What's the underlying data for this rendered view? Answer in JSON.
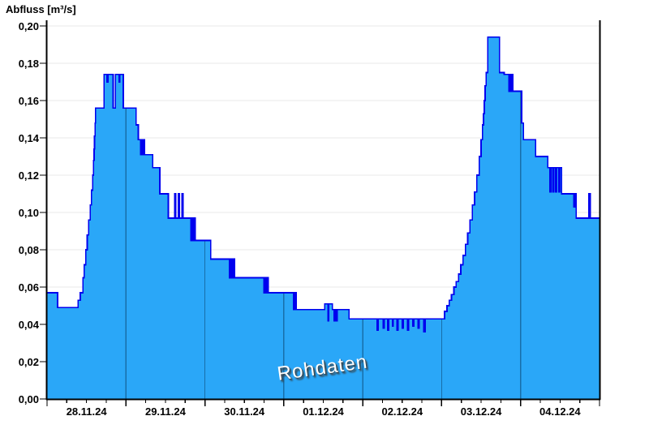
{
  "header": {
    "title": "Abfluss [m³/s]"
  },
  "watermark": {
    "text": "Rohdaten"
  },
  "colors": {
    "background": "#FFFFFF",
    "area_fill": "#2AA7F8",
    "line": "#0000EE",
    "grid_horizontal": "#E8E8E8",
    "day_line_over_fill": "rgba(0,30,60,0.42)",
    "axis": "#000000",
    "label_text": "#000000",
    "watermark_text": "#FFFFFF"
  },
  "chart_data": {
    "type": "area",
    "step_mode": "step-after",
    "title": "Abfluss [m³/s]",
    "ylabel": "Abfluss [m³/s]",
    "xlabel": "",
    "ylim": [
      0,
      0.2
    ],
    "y_tick_step": 0.02,
    "y_tick_values": [
      0,
      0.02,
      0.04,
      0.06,
      0.08,
      0.1,
      0.12,
      0.14,
      0.16,
      0.18,
      0.2
    ],
    "y_tick_labels": [
      "0,00",
      "0,02",
      "0,04",
      "0,06",
      "0,08",
      "0,10",
      "0,12",
      "0,14",
      "0,16",
      "0,18",
      "0,20"
    ],
    "x_range_hours": [
      0,
      168
    ],
    "x_major_tick_hours": [
      0,
      24,
      48,
      72,
      96,
      120,
      144,
      168
    ],
    "x_minor_tick_step_hours": 6,
    "x_day_labels": [
      {
        "label": "28.11.24",
        "center_hour": 12
      },
      {
        "label": "29.11.24",
        "center_hour": 36
      },
      {
        "label": "30.11.24",
        "center_hour": 60
      },
      {
        "label": "01.12.24",
        "center_hour": 84
      },
      {
        "label": "02.12.24",
        "center_hour": 108
      },
      {
        "label": "03.12.24",
        "center_hour": 132
      },
      {
        "label": "04.12.24",
        "center_hour": 156
      }
    ],
    "grid": {
      "horizontal": true,
      "vertical_day_lines_clipped_to_area": true
    },
    "legend": "none",
    "series": [
      {
        "name": "Rohdaten",
        "unit": "m³/s",
        "step_points_hour_value": [
          [
            0,
            0.057
          ],
          [
            3.2,
            0.049
          ],
          [
            9.4,
            0.053
          ],
          [
            10.1,
            0.057
          ],
          [
            10.9,
            0.065
          ],
          [
            11.3,
            0.072
          ],
          [
            11.75,
            0.08
          ],
          [
            12.2,
            0.088
          ],
          [
            12.65,
            0.096
          ],
          [
            13.1,
            0.104
          ],
          [
            13.5,
            0.112
          ],
          [
            13.85,
            0.12
          ],
          [
            14.1,
            0.128
          ],
          [
            14.3,
            0.134
          ],
          [
            14.45,
            0.141
          ],
          [
            14.6,
            0.148
          ],
          [
            14.75,
            0.156
          ],
          [
            17.3,
            0.174
          ],
          [
            18.2,
            0.17
          ],
          [
            18.5,
            0.174
          ],
          [
            20.1,
            0.156
          ],
          [
            20.8,
            0.174
          ],
          [
            21.9,
            0.17
          ],
          [
            22.1,
            0.174
          ],
          [
            23.2,
            0.156
          ],
          [
            27.1,
            0.147
          ],
          [
            27.75,
            0.139
          ],
          [
            28.4,
            0.131
          ],
          [
            28.7,
            0.139
          ],
          [
            29.0,
            0.131
          ],
          [
            29.3,
            0.139
          ],
          [
            29.6,
            0.131
          ],
          [
            32.1,
            0.124
          ],
          [
            34.3,
            0.11
          ],
          [
            36.9,
            0.097
          ],
          [
            38.8,
            0.11
          ],
          [
            39.1,
            0.097
          ],
          [
            39.9,
            0.11
          ],
          [
            40.2,
            0.097
          ],
          [
            41.0,
            0.11
          ],
          [
            41.3,
            0.097
          ],
          [
            43.8,
            0.085
          ],
          [
            44.1,
            0.097
          ],
          [
            44.4,
            0.085
          ],
          [
            44.7,
            0.097
          ],
          [
            45.0,
            0.085
          ],
          [
            49.8,
            0.075
          ],
          [
            55.5,
            0.065
          ],
          [
            55.8,
            0.075
          ],
          [
            56.2,
            0.065
          ],
          [
            56.6,
            0.075
          ],
          [
            57.0,
            0.065
          ],
          [
            65.9,
            0.057
          ],
          [
            66.2,
            0.065
          ],
          [
            66.6,
            0.057
          ],
          [
            66.9,
            0.065
          ],
          [
            67.2,
            0.057
          ],
          [
            75.0,
            0.048
          ],
          [
            75.4,
            0.057
          ],
          [
            75.8,
            0.048
          ],
          [
            84.4,
            0.051
          ],
          [
            85.4,
            0.042
          ],
          [
            85.7,
            0.051
          ],
          [
            86.8,
            0.048
          ],
          [
            87.3,
            0.042
          ],
          [
            87.6,
            0.048
          ],
          [
            87.9,
            0.042
          ],
          [
            88.2,
            0.048
          ],
          [
            91.8,
            0.043
          ],
          [
            100.4,
            0.037
          ],
          [
            100.7,
            0.043
          ],
          [
            102.2,
            0.038
          ],
          [
            102.5,
            0.043
          ],
          [
            103.6,
            0.037
          ],
          [
            103.9,
            0.043
          ],
          [
            105.0,
            0.039
          ],
          [
            105.3,
            0.043
          ],
          [
            106.4,
            0.037
          ],
          [
            106.7,
            0.043
          ],
          [
            108.0,
            0.038
          ],
          [
            108.3,
            0.043
          ],
          [
            109.6,
            0.037
          ],
          [
            109.9,
            0.043
          ],
          [
            111.2,
            0.039
          ],
          [
            111.5,
            0.043
          ],
          [
            112.8,
            0.038
          ],
          [
            113.1,
            0.043
          ],
          [
            114.6,
            0.036
          ],
          [
            115.0,
            0.043
          ],
          [
            120.9,
            0.047
          ],
          [
            121.6,
            0.05
          ],
          [
            122.3,
            0.053
          ],
          [
            123.0,
            0.056
          ],
          [
            123.7,
            0.06
          ],
          [
            124.4,
            0.063
          ],
          [
            125.1,
            0.067
          ],
          [
            125.8,
            0.072
          ],
          [
            126.5,
            0.077
          ],
          [
            127.2,
            0.083
          ],
          [
            127.9,
            0.089
          ],
          [
            128.6,
            0.096
          ],
          [
            129.3,
            0.104
          ],
          [
            130.0,
            0.111
          ],
          [
            130.7,
            0.12
          ],
          [
            131.4,
            0.13
          ],
          [
            132.0,
            0.139
          ],
          [
            132.4,
            0.147
          ],
          [
            132.7,
            0.153
          ],
          [
            132.95,
            0.16
          ],
          [
            133.2,
            0.168
          ],
          [
            133.5,
            0.175
          ],
          [
            134.0,
            0.194
          ],
          [
            137.6,
            0.175
          ],
          [
            139.0,
            0.174
          ],
          [
            140.4,
            0.165
          ],
          [
            140.7,
            0.174
          ],
          [
            141.0,
            0.165
          ],
          [
            141.3,
            0.174
          ],
          [
            141.6,
            0.165
          ],
          [
            144.3,
            0.148
          ],
          [
            144.9,
            0.139
          ],
          [
            148.6,
            0.13
          ],
          [
            152.3,
            0.124
          ],
          [
            152.9,
            0.111
          ],
          [
            153.2,
            0.124
          ],
          [
            153.8,
            0.111
          ],
          [
            154.1,
            0.124
          ],
          [
            154.7,
            0.111
          ],
          [
            155.0,
            0.124
          ],
          [
            155.6,
            0.111
          ],
          [
            155.9,
            0.124
          ],
          [
            156.5,
            0.11
          ],
          [
            160.2,
            0.103
          ],
          [
            160.6,
            0.11
          ],
          [
            160.9,
            0.097
          ],
          [
            164.8,
            0.11
          ],
          [
            165.2,
            0.097
          ],
          [
            168,
            0.097
          ]
        ]
      }
    ]
  }
}
